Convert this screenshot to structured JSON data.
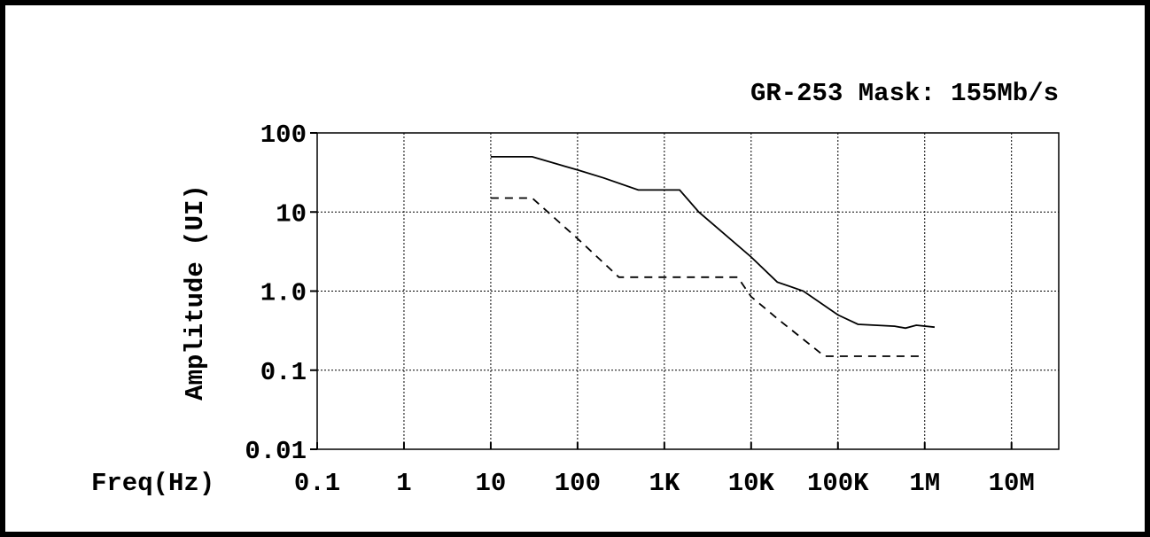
{
  "chart_data": {
    "type": "line",
    "title": "GR-253 Mask: 155Mb/s",
    "xlabel": "Freq(Hz)",
    "ylabel": "Amplitude (UI)",
    "xscale": "log",
    "yscale": "log",
    "grid": true,
    "xlim": [
      0.1,
      35000000
    ],
    "ylim": [
      0.01,
      100
    ],
    "xticks": [
      0.1,
      1,
      10,
      100,
      {
        "value": 1000,
        "label": "1K"
      },
      {
        "value": 10000,
        "label": "10K"
      },
      {
        "value": 100000,
        "label": "100K"
      },
      {
        "value": 1000000,
        "label": "1M"
      },
      {
        "value": 10000000,
        "label": "10M"
      }
    ],
    "yticks": [
      100,
      10,
      {
        "value": 1,
        "label": "1.0"
      },
      0.1,
      0.01
    ],
    "series": [
      {
        "color": "#000000",
        "style": "solid",
        "x": [
          10,
          30,
          100,
          200,
          500,
          1500,
          2500,
          10000,
          20000,
          40000,
          100000,
          170000,
          450000,
          600000,
          800000,
          1300000
        ],
        "values": [
          50,
          50,
          34,
          27,
          19,
          19,
          10,
          2.7,
          1.3,
          1.0,
          0.5,
          0.38,
          0.36,
          0.34,
          0.37,
          0.35
        ]
      },
      {
        "color": "#000000",
        "style": "dashed",
        "x": [
          10,
          30,
          100,
          300,
          7000,
          10000,
          20000,
          70000,
          1000000
        ],
        "values": [
          15,
          15,
          4.6,
          1.5,
          1.5,
          0.85,
          0.45,
          0.15,
          0.15
        ]
      }
    ]
  }
}
